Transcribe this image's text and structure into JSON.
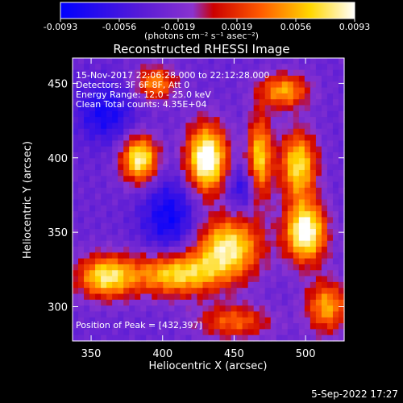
{
  "colorbar": {
    "ticks": [
      "-0.0093",
      "-0.0056",
      "-0.0019",
      "0.0019",
      "0.0056",
      "0.0093"
    ],
    "unit_label": "(photons cm⁻² s⁻¹ asec⁻²)",
    "colors": [
      "#0000ff",
      "#5a1cd6",
      "#8a33cf",
      "#cc0000",
      "#ff5a00",
      "#ffd700",
      "#ffffff"
    ]
  },
  "plot": {
    "title": "Reconstructed RHESSI Image",
    "info_lines": [
      "15-Nov-2017 22:06:28.000 to 22:12:28.000",
      "Detectors: 3F 6F 8F, Att 0",
      "Energy Range: 12.0 - 25.0 keV",
      "Clean     Total counts: 4.35E+04"
    ],
    "peak_text": "Position of Peak = [432,397]"
  },
  "footer": {
    "timestamp": "5-Sep-2022 17:27"
  },
  "chart_data": {
    "type": "heatmap",
    "title": "Reconstructed RHESSI Image",
    "xlabel": "Heliocentric X (arcsec)",
    "ylabel": "Heliocentric Y (arcsec)",
    "xlim": [
      337,
      527
    ],
    "ylim": [
      277,
      467
    ],
    "xticks": [
      350,
      400,
      450,
      500
    ],
    "yticks": [
      300,
      350,
      400,
      450
    ],
    "value_range": [
      -0.0093,
      0.0093
    ],
    "peak": [
      432,
      397
    ],
    "sources": [
      {
        "x": 431,
        "y": 399,
        "sx": 10,
        "sy": 16,
        "amp": 1.0
      },
      {
        "x": 384,
        "y": 399,
        "sx": 9,
        "sy": 11,
        "amp": 0.85
      },
      {
        "x": 500,
        "y": 350,
        "sx": 10,
        "sy": 14,
        "amp": 0.95
      },
      {
        "x": 495,
        "y": 395,
        "sx": 9,
        "sy": 16,
        "amp": 0.75
      },
      {
        "x": 468,
        "y": 400,
        "sx": 6,
        "sy": 20,
        "amp": 0.7
      },
      {
        "x": 446,
        "y": 340,
        "sx": 16,
        "sy": 14,
        "amp": 0.8
      },
      {
        "x": 410,
        "y": 322,
        "sx": 22,
        "sy": 10,
        "amp": 0.75
      },
      {
        "x": 360,
        "y": 320,
        "sx": 14,
        "sy": 10,
        "amp": 0.75
      },
      {
        "x": 485,
        "y": 445,
        "sx": 12,
        "sy": 8,
        "amp": 0.6
      },
      {
        "x": 395,
        "y": 450,
        "sx": 10,
        "sy": 8,
        "amp": 0.55
      },
      {
        "x": 515,
        "y": 300,
        "sx": 10,
        "sy": 12,
        "amp": 0.6
      },
      {
        "x": 450,
        "y": 290,
        "sx": 18,
        "sy": 8,
        "amp": 0.45
      }
    ],
    "dips": [
      {
        "x": 405,
        "y": 360,
        "sx": 14,
        "sy": 18,
        "amp": 0.5
      },
      {
        "x": 360,
        "y": 430,
        "sx": 14,
        "sy": 14,
        "amp": 0.45
      },
      {
        "x": 455,
        "y": 380,
        "sx": 8,
        "sy": 10,
        "amp": 0.35
      }
    ]
  }
}
